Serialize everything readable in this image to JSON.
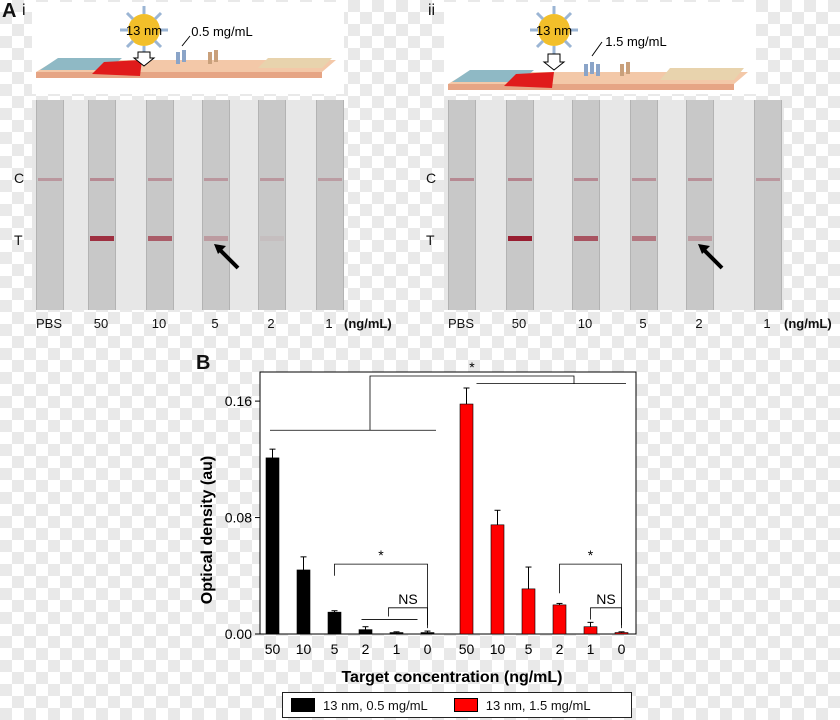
{
  "panel_a": {
    "letter": "A",
    "subpanels": [
      {
        "id": "i",
        "particle_label": "13 nm",
        "concentration_label": "0.5 mg/mL",
        "row_labels": {
          "control": "C",
          "test": "T"
        },
        "strip_labels": [
          "PBS",
          "50",
          "10",
          "5",
          "2",
          "1"
        ],
        "unit": "(ng/mL)",
        "test_band_intensity": [
          0,
          0.85,
          0.6,
          0.25,
          0.05,
          0
        ],
        "control_band_intensity": [
          0.35,
          0.45,
          0.4,
          0.35,
          0.35,
          0.3
        ],
        "arrow_at_strip": 3
      },
      {
        "id": "ii",
        "particle_label": "13 nm",
        "concentration_label": "1.5 mg/mL",
        "row_labels": {
          "control": "C",
          "test": "T"
        },
        "strip_labels": [
          "PBS",
          "50",
          "10",
          "5",
          "2",
          "1"
        ],
        "unit": "(ng/mL)",
        "test_band_intensity": [
          0,
          0.95,
          0.65,
          0.45,
          0.25,
          0
        ],
        "control_band_intensity": [
          0.45,
          0.5,
          0.45,
          0.4,
          0.4,
          0.35
        ],
        "arrow_at_strip": 4
      }
    ]
  },
  "chart_data": {
    "panel_letter": "B",
    "type": "bar",
    "ylabel": "Optical density (au)",
    "xlabel": "Target concentration (ng/mL)",
    "ylim": [
      0,
      0.18
    ],
    "yticks": [
      0.0,
      0.08,
      0.16
    ],
    "ytick_labels": [
      "0.00",
      "0.08",
      "0.16"
    ],
    "series": [
      {
        "name": "13 nm, 0.5 mg/mL",
        "color": "#000000",
        "categories": [
          "50",
          "10",
          "5",
          "2",
          "1",
          "0"
        ],
        "values": [
          0.121,
          0.044,
          0.015,
          0.003,
          0.001,
          0.001
        ],
        "errors": [
          0.006,
          0.009,
          0.001,
          0.002,
          0.0005,
          0.001
        ]
      },
      {
        "name": "13 nm, 1.5 mg/mL",
        "color": "#ff0000",
        "categories": [
          "50",
          "10",
          "5",
          "2",
          "1",
          "0"
        ],
        "values": [
          0.158,
          0.075,
          0.031,
          0.02,
          0.005,
          0.001
        ],
        "errors": [
          0.011,
          0.01,
          0.015,
          0.001,
          0.003,
          0.0005
        ]
      }
    ],
    "annotations": [
      {
        "text": "*",
        "type": "significance",
        "between": "series"
      },
      {
        "text": "*",
        "type": "significance",
        "series": 0,
        "from": "5",
        "to": "0"
      },
      {
        "text": "NS",
        "type": "not-significant",
        "series": 0,
        "from": "2",
        "to": "0"
      },
      {
        "text": "*",
        "type": "significance",
        "series": 1,
        "from": "2",
        "to": "0"
      },
      {
        "text": "NS",
        "type": "not-significant",
        "series": 1,
        "from": "1",
        "to": "0"
      }
    ],
    "legend_position": "bottom"
  }
}
